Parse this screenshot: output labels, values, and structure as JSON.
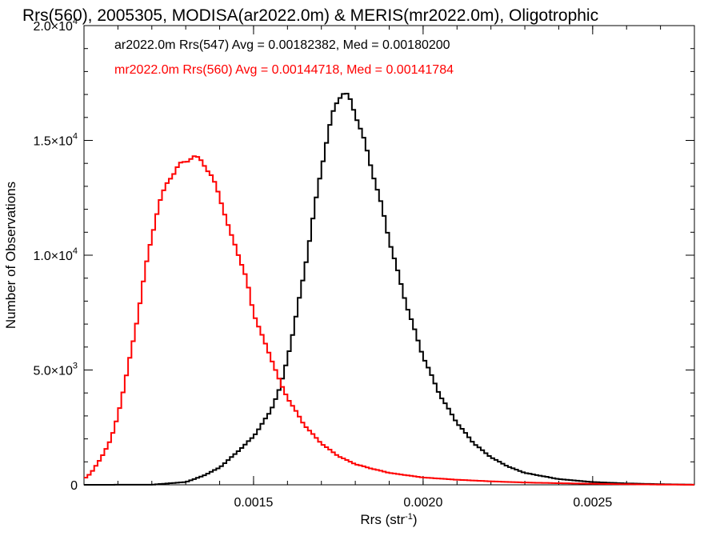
{
  "chart_data": {
    "type": "line",
    "step": true,
    "title": "Rrs(560), 2005305, MODISA(ar2022.0m) & MERIS(mr2022.0m), Oligotrophic",
    "xlabel": "Rrs (str",
    "xlabel_sup": "-1",
    "xlabel_end": ")",
    "ylabel": "Number of Observations",
    "xlim": [
      0.001,
      0.0028
    ],
    "ylim": [
      0,
      20000
    ],
    "xticks": [
      {
        "value": 0.0015,
        "label": "0.0015"
      },
      {
        "value": 0.002,
        "label": "0.0020"
      },
      {
        "value": 0.0025,
        "label": "0.0025"
      }
    ],
    "xminor_step": 0.0001,
    "yticks": [
      {
        "value": 0,
        "mant": "0",
        "exp": ""
      },
      {
        "value": 5000,
        "mant": "5.0×10",
        "exp": "3"
      },
      {
        "value": 10000,
        "mant": "1.0×10",
        "exp": "4"
      },
      {
        "value": 15000,
        "mant": "1.5×10",
        "exp": "4"
      },
      {
        "value": 20000,
        "mant": "2.0×10",
        "exp": "4"
      }
    ],
    "yminor_step": 1000,
    "legend_position": "top-left",
    "series": [
      {
        "name": "ar2022.0m Rrs(547) Avg = 0.00182382, Med = 0.00180200",
        "color": "#000000",
        "points": [
          [
            0.001,
            0
          ],
          [
            0.0012,
            5
          ],
          [
            0.0013,
            120
          ],
          [
            0.00135,
            380
          ],
          [
            0.0014,
            750
          ],
          [
            0.00145,
            1400
          ],
          [
            0.0015,
            2100
          ],
          [
            0.00155,
            3200
          ],
          [
            0.00158,
            4300
          ],
          [
            0.0016,
            5500
          ],
          [
            0.00162,
            6900
          ],
          [
            0.00165,
            9300
          ],
          [
            0.00168,
            12000
          ],
          [
            0.0017,
            13800
          ],
          [
            0.00172,
            15300
          ],
          [
            0.00174,
            16500
          ],
          [
            0.00176,
            17100
          ],
          [
            0.00178,
            16900
          ],
          [
            0.0018,
            16200
          ],
          [
            0.00182,
            15300
          ],
          [
            0.00185,
            13700
          ],
          [
            0.00188,
            12000
          ],
          [
            0.0019,
            10700
          ],
          [
            0.00193,
            9000
          ],
          [
            0.00195,
            7900
          ],
          [
            0.00198,
            6500
          ],
          [
            0.002,
            5600
          ],
          [
            0.00205,
            3900
          ],
          [
            0.0021,
            2700
          ],
          [
            0.00215,
            1800
          ],
          [
            0.0022,
            1200
          ],
          [
            0.00225,
            800
          ],
          [
            0.0023,
            520
          ],
          [
            0.0024,
            250
          ],
          [
            0.0025,
            120
          ],
          [
            0.0026,
            60
          ],
          [
            0.0027,
            25
          ],
          [
            0.0028,
            5
          ]
        ]
      },
      {
        "name": "mr2022.0m Rrs(560) Avg = 0.00144718, Med = 0.00141784",
        "color": "#ff0000",
        "points": [
          [
            0.001,
            250
          ],
          [
            0.00102,
            500
          ],
          [
            0.00105,
            1150
          ],
          [
            0.00108,
            2000
          ],
          [
            0.0011,
            3000
          ],
          [
            0.00112,
            4400
          ],
          [
            0.00115,
            6600
          ],
          [
            0.00118,
            9300
          ],
          [
            0.0012,
            10800
          ],
          [
            0.00122,
            12200
          ],
          [
            0.00125,
            13300
          ],
          [
            0.00128,
            13900
          ],
          [
            0.0013,
            14100
          ],
          [
            0.00132,
            14300
          ],
          [
            0.00135,
            14100
          ],
          [
            0.00138,
            13300
          ],
          [
            0.0014,
            12600
          ],
          [
            0.00143,
            11000
          ],
          [
            0.00145,
            10300
          ],
          [
            0.00148,
            8900
          ],
          [
            0.0015,
            7500
          ],
          [
            0.00153,
            6300
          ],
          [
            0.00155,
            5600
          ],
          [
            0.00158,
            4400
          ],
          [
            0.0016,
            3800
          ],
          [
            0.00165,
            2600
          ],
          [
            0.0017,
            1800
          ],
          [
            0.00175,
            1250
          ],
          [
            0.0018,
            900
          ],
          [
            0.00185,
            700
          ],
          [
            0.0019,
            520
          ],
          [
            0.002,
            320
          ],
          [
            0.0021,
            220
          ],
          [
            0.0022,
            150
          ],
          [
            0.0023,
            100
          ],
          [
            0.0024,
            70
          ],
          [
            0.0025,
            45
          ],
          [
            0.0026,
            25
          ],
          [
            0.0027,
            10
          ],
          [
            0.0028,
            4
          ]
        ]
      }
    ]
  }
}
